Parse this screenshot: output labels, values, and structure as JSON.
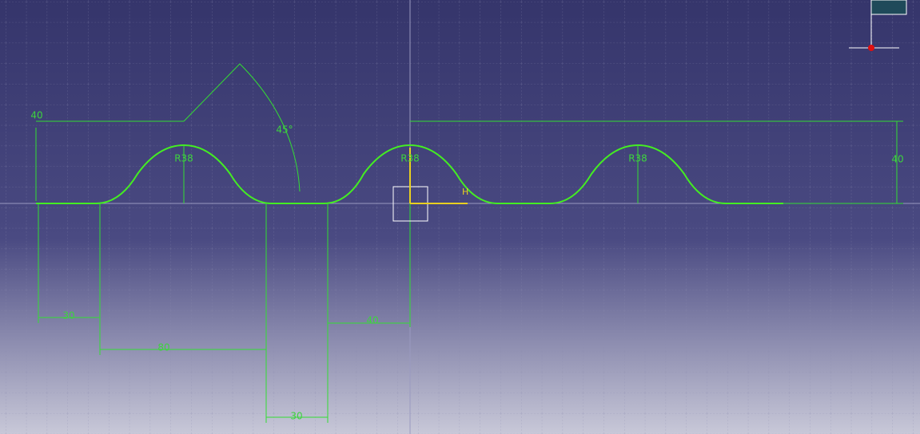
{
  "sketch": {
    "dimensions": [
      {
        "name": "top-left-height",
        "label": "40"
      },
      {
        "name": "angle",
        "label": "45°"
      },
      {
        "name": "radius-1",
        "label": "R38"
      },
      {
        "name": "radius-2",
        "label": "R38"
      },
      {
        "name": "radius-3",
        "label": "R38"
      },
      {
        "name": "right-height",
        "label": "40"
      },
      {
        "name": "start-length",
        "label": "30"
      },
      {
        "name": "span",
        "label": "80"
      },
      {
        "name": "origin-offset",
        "label": "40"
      },
      {
        "name": "gap-length",
        "label": "30"
      }
    ],
    "axis_h": "H"
  }
}
